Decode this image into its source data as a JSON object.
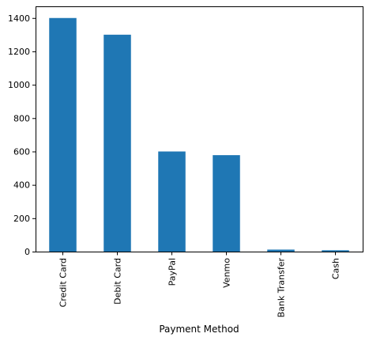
{
  "chart_data": {
    "type": "bar",
    "title": "",
    "xlabel": "Payment Method",
    "ylabel": "",
    "categories": [
      "Credit Card",
      "Debit Card",
      "PayPal",
      "Venmo",
      "Bank Transfer",
      "Cash"
    ],
    "values": [
      1400,
      1300,
      600,
      578,
      12,
      8
    ],
    "ylim": [
      0,
      1470
    ],
    "yticks": [
      0,
      200,
      400,
      600,
      800,
      1000,
      1200,
      1400
    ],
    "grid": false,
    "legend": "none",
    "bar_color": "#1f77b4"
  }
}
